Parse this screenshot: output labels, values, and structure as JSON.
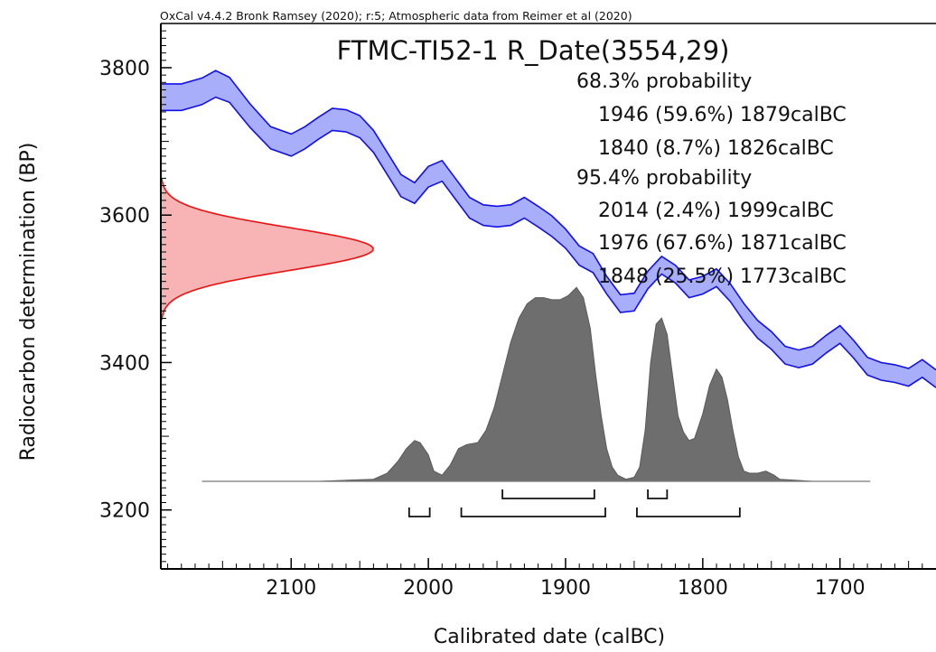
{
  "chart_data": {
    "type": "area",
    "header": "OxCal v4.4.2 Bronk Ramsey (2020); r:5; Atmospheric data from Reimer et al (2020)",
    "title": "FTMC-TI52-1 R_Date(3554,29)",
    "xlabel": "Calibrated date (calBC)",
    "ylabel": "Radiocarbon determination (BP)",
    "x_ticks": [
      "2100",
      "2000",
      "1900",
      "1800",
      "1700"
    ],
    "y_ticks": [
      "3800",
      "3600",
      "3400",
      "3200"
    ],
    "xlim": [
      2195,
      1630
    ],
    "ylim": [
      3120,
      3860
    ],
    "x_reversed": true,
    "x_tick_values": [
      2100,
      2000,
      1900,
      1800,
      1700
    ],
    "y_tick_values": [
      3800,
      3600,
      3400,
      3200
    ],
    "colors": {
      "curve_fill": "#a9aefa",
      "curve_line": "#1010ee",
      "measurement_fill": "#f8b4b4",
      "measurement_line": "#ee1111",
      "posterior_fill": "#6e6e6e",
      "bracket": "#111111"
    },
    "annotations": [
      "68.3% probability",
      "1946 (59.6%) 1879calBC",
      "1840 (8.7%) 1826calBC",
      "95.4% probability",
      "2014 (2.4%) 1999calBC",
      "1976 (67.6%) 1871calBC",
      "1848 (25.5%) 1773calBC"
    ],
    "measurement": {
      "mean_bp": 3554,
      "sigma_bp": 29
    },
    "calibration_curve": {
      "x": [
        2195,
        2180,
        2165,
        2155,
        2145,
        2130,
        2115,
        2100,
        2090,
        2080,
        2070,
        2060,
        2050,
        2040,
        2030,
        2020,
        2010,
        2000,
        1990,
        1980,
        1970,
        1960,
        1950,
        1940,
        1930,
        1920,
        1910,
        1900,
        1890,
        1880,
        1870,
        1860,
        1850,
        1840,
        1830,
        1820,
        1810,
        1800,
        1790,
        1780,
        1770,
        1760,
        1750,
        1740,
        1730,
        1720,
        1710,
        1700,
        1690,
        1680,
        1670,
        1660,
        1650,
        1640,
        1630
      ],
      "bp": [
        3760,
        3760,
        3768,
        3778,
        3770,
        3735,
        3705,
        3695,
        3705,
        3718,
        3730,
        3728,
        3720,
        3700,
        3670,
        3640,
        3630,
        3652,
        3660,
        3635,
        3610,
        3600,
        3598,
        3600,
        3610,
        3598,
        3585,
        3568,
        3545,
        3535,
        3505,
        3480,
        3482,
        3512,
        3532,
        3520,
        3500,
        3505,
        3515,
        3495,
        3468,
        3445,
        3430,
        3410,
        3405,
        3410,
        3425,
        3438,
        3418,
        3395,
        3388,
        3385,
        3380,
        3392,
        3378
      ],
      "sigma": [
        18,
        18,
        18,
        18,
        17,
        16,
        15,
        15,
        15,
        15,
        15,
        15,
        15,
        15,
        15,
        15,
        14,
        14,
        14,
        14,
        14,
        14,
        14,
        14,
        14,
        14,
        14,
        13,
        13,
        13,
        12,
        12,
        12,
        12,
        12,
        12,
        12,
        12,
        12,
        12,
        12,
        12,
        12,
        12,
        12,
        12,
        12,
        12,
        12,
        12,
        12,
        12,
        12,
        12,
        12
      ]
    },
    "posterior": {
      "x": [
        2165,
        2080,
        2040,
        2030,
        2022,
        2016,
        2010,
        2006,
        2000,
        1996,
        1990,
        1984,
        1978,
        1972,
        1964,
        1958,
        1952,
        1946,
        1940,
        1934,
        1928,
        1922,
        1916,
        1910,
        1904,
        1898,
        1892,
        1887,
        1882,
        1878,
        1874,
        1870,
        1866,
        1862,
        1856,
        1850,
        1846,
        1842,
        1838,
        1834,
        1830,
        1826,
        1822,
        1818,
        1814,
        1810,
        1806,
        1800,
        1795,
        1790,
        1786,
        1782,
        1778,
        1774,
        1770,
        1766,
        1760,
        1754,
        1748,
        1744,
        1720,
        1678
      ],
      "density": [
        0,
        0,
        0.01,
        0.04,
        0.1,
        0.16,
        0.2,
        0.19,
        0.13,
        0.05,
        0.03,
        0.08,
        0.16,
        0.18,
        0.19,
        0.25,
        0.36,
        0.52,
        0.68,
        0.8,
        0.87,
        0.9,
        0.9,
        0.89,
        0.89,
        0.91,
        0.95,
        0.9,
        0.75,
        0.52,
        0.32,
        0.16,
        0.07,
        0.03,
        0.01,
        0.02,
        0.07,
        0.25,
        0.58,
        0.77,
        0.8,
        0.72,
        0.52,
        0.32,
        0.24,
        0.2,
        0.21,
        0.33,
        0.47,
        0.55,
        0.51,
        0.4,
        0.25,
        0.12,
        0.05,
        0.04,
        0.04,
        0.05,
        0.03,
        0.01,
        0,
        0
      ]
    },
    "ranges_68": [
      [
        1946,
        1879
      ],
      [
        1840,
        1826
      ]
    ],
    "ranges_95": [
      [
        2014,
        1999
      ],
      [
        1976,
        1871
      ],
      [
        1848,
        1773
      ]
    ]
  }
}
